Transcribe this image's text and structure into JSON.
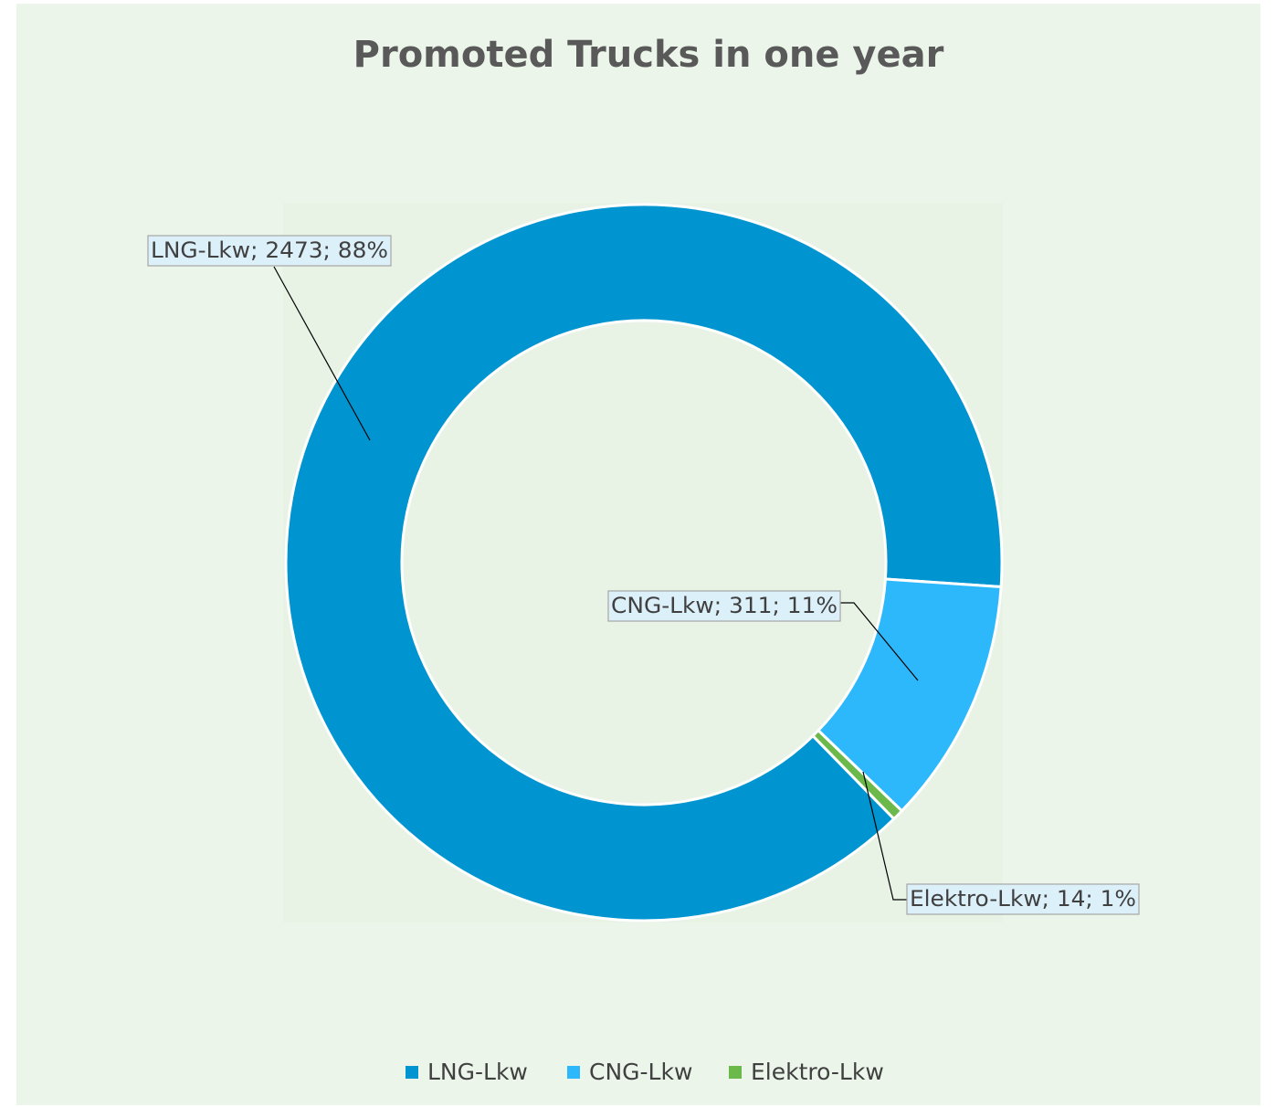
{
  "chart_data": {
    "type": "donut",
    "title": "Promoted Trucks in one year",
    "categories": [
      "LNG-Lkw",
      "CNG-Lkw",
      "Elektro-Lkw"
    ],
    "values": [
      2473,
      311,
      14
    ],
    "value_labels": [
      "LNG-Lkw; 2473; 88%",
      "CNG-Lkw; 311; 11%",
      "Elektro-Lkw; 14; 1%"
    ],
    "colors": [
      "#0095d0",
      "#2eb8fc",
      "#6bb84b"
    ],
    "legend": "bottom"
  }
}
